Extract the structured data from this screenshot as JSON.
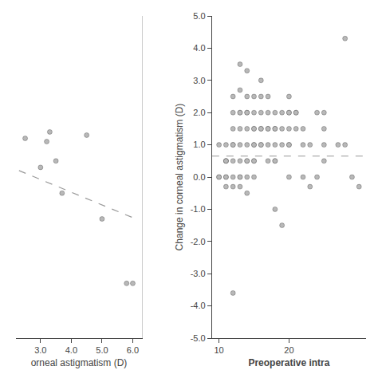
{
  "chart_data": [
    {
      "type": "scatter",
      "xlabel": "orneal astigmatism (D)",
      "xlim": [
        2.2,
        6.3
      ],
      "ylim": [
        -5.0,
        5.0
      ],
      "xticks": [
        {
          "value": 3.0,
          "label": "3.0"
        },
        {
          "value": 4.0,
          "label": "4.0"
        },
        {
          "value": 5.0,
          "label": "5.0"
        },
        {
          "value": 6.0,
          "label": "6.0"
        }
      ],
      "tick_labels": "x",
      "grid": false,
      "series": [
        {
          "type": "scatter",
          "color": "#b8b8b8",
          "marker": "circle",
          "x": [
            2.5,
            3.0,
            3.2,
            3.3,
            3.5,
            3.7,
            4.5,
            5.0,
            5.8,
            6.0
          ],
          "values": [
            1.2,
            0.3,
            1.1,
            1.4,
            0.5,
            -0.5,
            1.3,
            -1.3,
            -3.3,
            -3.3
          ]
        },
        {
          "type": "line",
          "color": "#999999",
          "line_style": "dashed",
          "x": [
            2.3,
            6.1
          ],
          "values": [
            0.2,
            -1.3
          ]
        }
      ]
    },
    {
      "type": "scatter",
      "xlabel": "Preoperative intra",
      "ylabel": "Change in corneal astigmatism (D)",
      "xlim": [
        9,
        31
      ],
      "ylim": [
        -5.0,
        5.0
      ],
      "xticks": [
        10,
        20
      ],
      "yticks": [
        {
          "value": -5.0,
          "label": "-5.0"
        },
        {
          "value": -4.0,
          "label": "-4.0"
        },
        {
          "value": -3.0,
          "label": "-3.0"
        },
        {
          "value": -2.0,
          "label": "-2.0"
        },
        {
          "value": -1.0,
          "label": "-1.0"
        },
        {
          "value": 0.0,
          "label": "0.0"
        },
        {
          "value": 1.0,
          "label": "1.0"
        },
        {
          "value": 2.0,
          "label": "2.0"
        },
        {
          "value": 3.0,
          "label": "3.0"
        },
        {
          "value": 4.0,
          "label": "4.0"
        },
        {
          "value": 5.0,
          "label": "5.0"
        }
      ],
      "grid": false,
      "series": [
        {
          "type": "scatter",
          "color": "#b8b8b8",
          "marker": "circle",
          "x": [
            10,
            10,
            10,
            11,
            11,
            11,
            11,
            11,
            11,
            11,
            12,
            12,
            12,
            12,
            12,
            12,
            12,
            12,
            12,
            13,
            13,
            13,
            13,
            13,
            13,
            13,
            13,
            13,
            13,
            14,
            14,
            14,
            14,
            14,
            14,
            14,
            14,
            14,
            14,
            15,
            15,
            15,
            15,
            15,
            15,
            15,
            15,
            15,
            16,
            16,
            16,
            16,
            16,
            16,
            16,
            17,
            17,
            17,
            17,
            17,
            17,
            18,
            18,
            18,
            18,
            18,
            18,
            18,
            19,
            19,
            19,
            19,
            20,
            20,
            20,
            20,
            20,
            20,
            20,
            21,
            21,
            21,
            22,
            22,
            22,
            23,
            23,
            24,
            24,
            25,
            25,
            25,
            25,
            27,
            28,
            28,
            29,
            30
          ],
          "values": [
            1.0,
            0.0,
            0.0,
            1.0,
            0.5,
            0.5,
            0.5,
            0.0,
            0.0,
            -0.3,
            2.5,
            2.0,
            1.5,
            1.0,
            0.5,
            0.0,
            -0.3,
            -3.6,
            1.0,
            3.5,
            2.7,
            2.0,
            2.0,
            1.5,
            1.0,
            0.5,
            0.0,
            0.0,
            -0.3,
            3.3,
            2.5,
            2.0,
            2.0,
            1.5,
            1.0,
            0.5,
            0.5,
            0.0,
            -0.5,
            2.5,
            2.0,
            1.5,
            1.5,
            1.0,
            1.0,
            0.5,
            0.5,
            0.0,
            3.0,
            2.5,
            2.0,
            1.5,
            1.5,
            1.0,
            1.0,
            2.5,
            2.0,
            1.5,
            1.5,
            1.0,
            0.5,
            2.0,
            1.5,
            1.5,
            1.0,
            0.5,
            0.5,
            -1.0,
            2.0,
            1.5,
            1.0,
            -1.5,
            2.5,
            2.0,
            1.5,
            1.0,
            1.0,
            0.0,
            2.0,
            2.0,
            2.0,
            1.5,
            1.5,
            1.0,
            0.0,
            -0.3,
            1.0,
            2.0,
            0.0,
            2.0,
            1.5,
            1.0,
            0.5,
            1.0,
            1.0,
            4.3,
            0.0,
            -0.3
          ]
        },
        {
          "type": "hline",
          "color": "#999999",
          "line_style": "dashed",
          "values": [
            0.65
          ]
        }
      ]
    }
  ]
}
